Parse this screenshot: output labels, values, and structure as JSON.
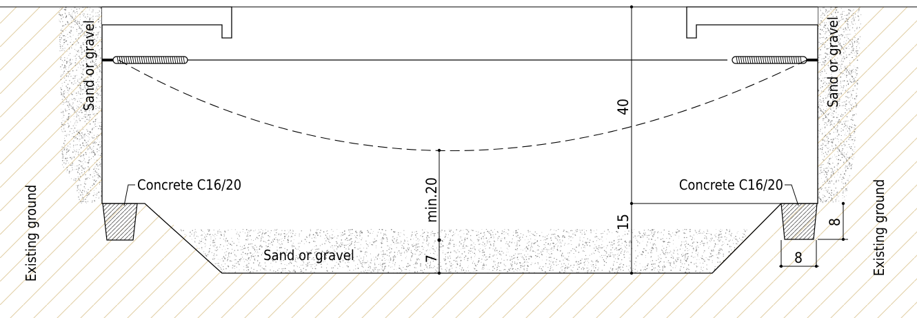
{
  "labels": {
    "sand_gravel_left": "Sand or gravel",
    "sand_gravel_right": "Sand or gravel",
    "sand_gravel_bottom": "Sand or gravel",
    "concrete_left": "Concrete C16/20",
    "concrete_right": "Concrete C16/20",
    "existing_ground_left": "Existing ground",
    "existing_ground_right": "Existing ground"
  },
  "dimensions": {
    "total_height": "40",
    "lower_height": "15",
    "min_clearance": "min.20",
    "bed_thickness": "7",
    "footing_height": "8",
    "footing_width": "8"
  },
  "colors": {
    "line": "#000000",
    "hatch": "#e2cfa6",
    "sand": "#6e6e6e",
    "background": "#ffffff"
  }
}
